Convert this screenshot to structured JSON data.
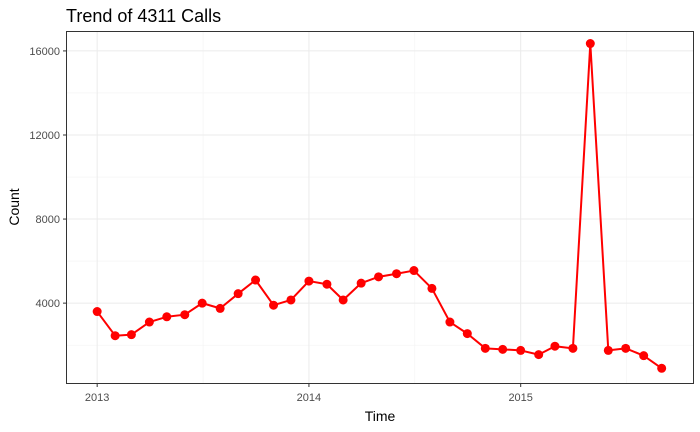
{
  "chart_data": {
    "type": "line",
    "title": "Trend of 4311 Calls",
    "xlabel": "Time",
    "ylabel": "Count",
    "x_ticks": [
      {
        "label": "2013",
        "date": "2013-01-01"
      },
      {
        "label": "2014",
        "date": "2014-01-01"
      },
      {
        "label": "2015",
        "date": "2015-01-01"
      }
    ],
    "y_ticks": [
      4000,
      8000,
      12000,
      16000
    ],
    "ylim": [
      200,
      16900
    ],
    "xlim": [
      "2012-11-10",
      "2015-10-25"
    ],
    "grid": true,
    "series": [
      {
        "name": "",
        "color": "#ff0000",
        "x": [
          "2013-01-01",
          "2013-02-01",
          "2013-03-01",
          "2013-04-01",
          "2013-05-01",
          "2013-06-01",
          "2013-07-01",
          "2013-08-01",
          "2013-09-01",
          "2013-10-01",
          "2013-11-01",
          "2013-12-01",
          "2014-01-01",
          "2014-02-01",
          "2014-03-01",
          "2014-04-01",
          "2014-05-01",
          "2014-06-01",
          "2014-07-01",
          "2014-08-01",
          "2014-09-01",
          "2014-10-01",
          "2014-11-01",
          "2014-12-01",
          "2015-01-01",
          "2015-02-01",
          "2015-03-01",
          "2015-04-01",
          "2015-05-01",
          "2015-06-01",
          "2015-07-01",
          "2015-08-01",
          "2015-09-01"
        ],
        "y": [
          3600,
          2450,
          2500,
          3100,
          3350,
          3450,
          4000,
          3750,
          4450,
          5100,
          3900,
          4150,
          5050,
          4900,
          4150,
          4950,
          5250,
          5400,
          5550,
          4700,
          3100,
          2550,
          1850,
          1800,
          1750,
          1550,
          1950,
          1850,
          16350,
          1750,
          1850,
          1500,
          900
        ]
      }
    ]
  }
}
